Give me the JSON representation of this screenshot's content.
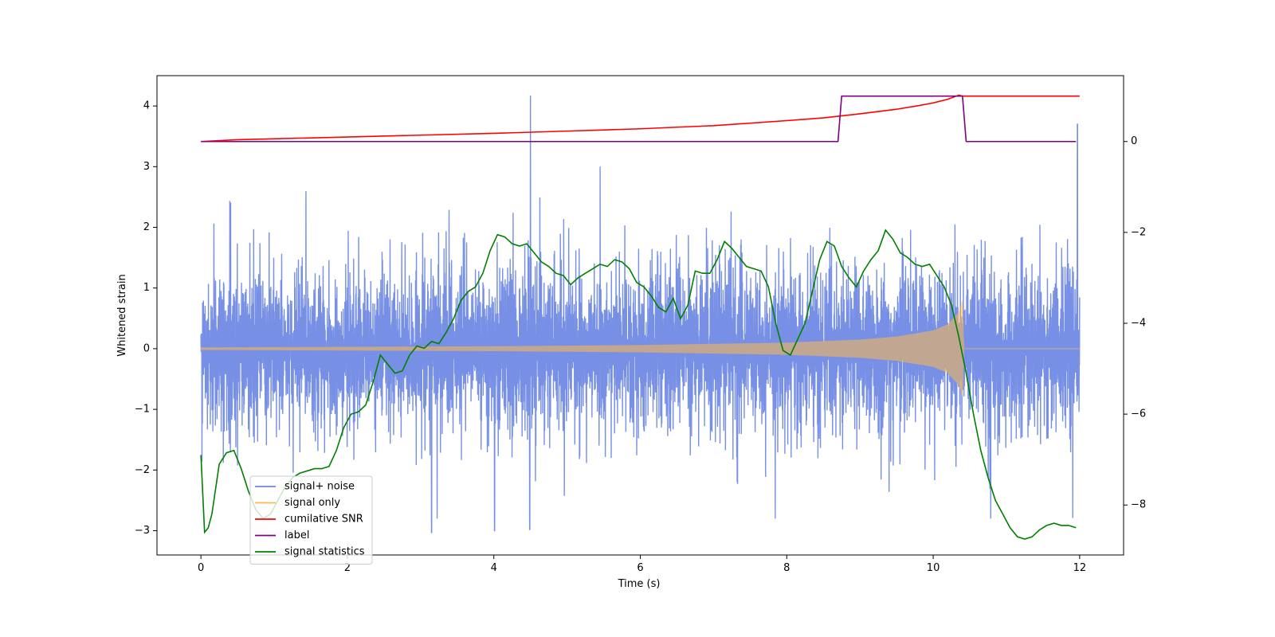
{
  "chart_data": {
    "type": "line",
    "title": "",
    "xlabel": "Time (s)",
    "ylabel": "Whitened strain",
    "ylabel_right": "",
    "xlim": [
      -0.6,
      12.6
    ],
    "ylim_left": [
      -3.4,
      4.5
    ],
    "ylim_right": [
      -9.1,
      1.45
    ],
    "x_ticks": [
      0,
      2,
      4,
      6,
      8,
      10,
      12
    ],
    "x_tick_labels": [
      "0",
      "2",
      "4",
      "6",
      "8",
      "10",
      "12"
    ],
    "y_left_ticks": [
      -3,
      -2,
      -1,
      0,
      1,
      2,
      3,
      4
    ],
    "y_left_tick_labels": [
      "−3",
      "−2",
      "−1",
      "0",
      "1",
      "2",
      "3",
      "4"
    ],
    "y_right_ticks": [
      -8,
      -6,
      -4,
      -2,
      0
    ],
    "y_right_tick_labels": [
      "−8",
      "−6",
      "−4",
      "−2",
      "0"
    ],
    "grid": false,
    "legend_position": "bottom-left",
    "series": [
      {
        "name": "signal+ noise",
        "axis": "left",
        "color": "#6b87e3",
        "style": "dense-noise",
        "noise_amplitude": 1.5,
        "x_range": [
          0,
          12
        ],
        "outliers": [
          {
            "x": 4.5,
            "y": 4.17
          },
          {
            "x": 4.49,
            "y": -2.98
          },
          {
            "x": 11.97,
            "y": 3.7
          },
          {
            "x": 3.15,
            "y": -3.03
          },
          {
            "x": 4.01,
            "y": -3.0
          }
        ]
      },
      {
        "name": "signal only",
        "axis": "left",
        "color": "#ffb84d",
        "style": "chirp",
        "x_range": [
          0,
          12
        ],
        "envelope": {
          "x": [
            0,
            2,
            4,
            6,
            8,
            9,
            9.5,
            10,
            10.2,
            10.35,
            10.4,
            10.42,
            12
          ],
          "y": [
            0.02,
            0.03,
            0.04,
            0.06,
            0.1,
            0.15,
            0.2,
            0.3,
            0.4,
            0.6,
            0.8,
            0.0,
            0.0
          ]
        }
      },
      {
        "name": "cumilative SNR",
        "axis": "right",
        "color": "#ff0000",
        "x": [
          0,
          0.5,
          1,
          2,
          3,
          4,
          5,
          6,
          7,
          8,
          8.5,
          9,
          9.5,
          9.8,
          10,
          10.2,
          10.35,
          10.4,
          10.45,
          12
        ],
        "y": [
          0,
          0.04,
          0.06,
          0.1,
          0.14,
          0.18,
          0.23,
          0.28,
          0.35,
          0.46,
          0.52,
          0.61,
          0.71,
          0.79,
          0.85,
          0.93,
          1.02,
          1.0,
          1.0,
          1.0
        ]
      },
      {
        "name": "label",
        "axis": "right",
        "color": "#800080",
        "x": [
          0,
          8.7,
          8.75,
          10.4,
          10.45,
          11.95
        ],
        "y": [
          0,
          0,
          1,
          1,
          0,
          0
        ]
      },
      {
        "name": "signal statistics",
        "axis": "right",
        "color": "#008000",
        "x": [
          0,
          0.05,
          0.1,
          0.15,
          0.25,
          0.35,
          0.45,
          0.55,
          0.65,
          0.75,
          0.85,
          0.95,
          1.05,
          1.15,
          1.25,
          1.35,
          1.45,
          1.55,
          1.65,
          1.75,
          1.85,
          1.95,
          2.05,
          2.15,
          2.25,
          2.35,
          2.45,
          2.55,
          2.65,
          2.75,
          2.85,
          2.95,
          3.05,
          3.15,
          3.25,
          3.35,
          3.45,
          3.55,
          3.65,
          3.75,
          3.85,
          3.95,
          4.05,
          4.15,
          4.25,
          4.35,
          4.45,
          4.55,
          4.65,
          4.75,
          4.85,
          4.95,
          5.05,
          5.15,
          5.25,
          5.35,
          5.45,
          5.55,
          5.65,
          5.75,
          5.85,
          5.95,
          6.05,
          6.15,
          6.25,
          6.35,
          6.45,
          6.55,
          6.65,
          6.75,
          6.85,
          6.95,
          7.05,
          7.15,
          7.25,
          7.35,
          7.45,
          7.55,
          7.65,
          7.75,
          7.85,
          7.95,
          8.05,
          8.15,
          8.25,
          8.35,
          8.45,
          8.55,
          8.65,
          8.75,
          8.85,
          8.95,
          9.05,
          9.15,
          9.25,
          9.35,
          9.45,
          9.55,
          9.65,
          9.75,
          9.85,
          9.95,
          10.05,
          10.15,
          10.25,
          10.35,
          10.45,
          10.55,
          10.65,
          10.75,
          10.85,
          10.95,
          11.05,
          11.15,
          11.25,
          11.35,
          11.45,
          11.55,
          11.65,
          11.75,
          11.85,
          11.95
        ],
        "y": [
          -6.9,
          -8.6,
          -8.5,
          -8.2,
          -7.1,
          -6.85,
          -6.8,
          -7.2,
          -7.7,
          -8.1,
          -8.3,
          -8.2,
          -7.9,
          -7.6,
          -7.4,
          -7.3,
          -7.25,
          -7.2,
          -7.2,
          -7.15,
          -6.8,
          -6.3,
          -6.0,
          -5.95,
          -5.8,
          -5.3,
          -4.7,
          -4.9,
          -5.1,
          -5.05,
          -4.7,
          -4.5,
          -4.55,
          -4.4,
          -4.45,
          -4.2,
          -3.9,
          -3.5,
          -3.3,
          -3.2,
          -2.9,
          -2.4,
          -2.05,
          -2.1,
          -2.25,
          -2.3,
          -2.25,
          -2.45,
          -2.65,
          -2.75,
          -2.9,
          -2.95,
          -3.15,
          -3.0,
          -2.9,
          -2.8,
          -2.7,
          -2.75,
          -2.6,
          -2.65,
          -2.8,
          -3.1,
          -3.2,
          -3.4,
          -3.65,
          -3.75,
          -3.45,
          -3.9,
          -3.6,
          -2.85,
          -2.9,
          -2.9,
          -2.6,
          -2.2,
          -2.35,
          -2.55,
          -2.75,
          -2.8,
          -2.85,
          -3.2,
          -4.0,
          -4.6,
          -4.7,
          -4.35,
          -4.0,
          -3.3,
          -2.6,
          -2.2,
          -2.3,
          -2.75,
          -3.0,
          -3.2,
          -2.85,
          -2.6,
          -2.4,
          -1.95,
          -2.15,
          -2.45,
          -2.55,
          -2.7,
          -2.75,
          -2.7,
          -2.95,
          -3.2,
          -3.6,
          -4.3,
          -5.1,
          -6.0,
          -6.8,
          -7.4,
          -7.9,
          -8.2,
          -8.5,
          -8.7,
          -8.75,
          -8.7,
          -8.55,
          -8.45,
          -8.4,
          -8.45,
          -8.45,
          -8.5
        ]
      }
    ]
  }
}
